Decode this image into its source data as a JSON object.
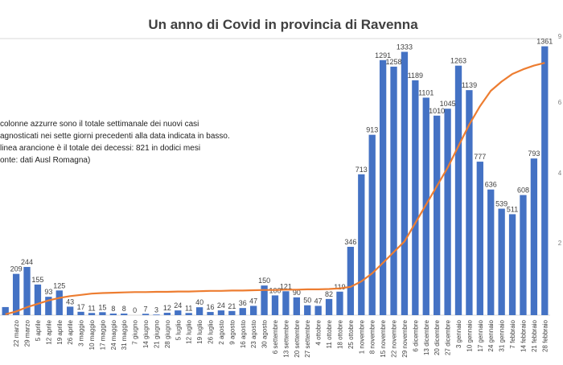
{
  "chart_data": {
    "type": "bar",
    "title": "Un anno di Covid in provincia di Ravenna",
    "annotation": [
      "colonne azzurre sono il totale settimanale dei nuovi casi",
      "agnosticati nei sette giorni precedenti alla data indicata in basso.",
      "linea arancione è il totale dei decessi: 821 in dodici mesi",
      "onte: dati Ausl Romagna)"
    ],
    "categories": [
      "",
      "22 marzo",
      "29 marzo",
      "5 aprile",
      "12 aprile",
      "19 aprile",
      "26 aprile",
      "3 maggio",
      "10 maggio",
      "17 maggio",
      "24 maggio",
      "31 maggio",
      "7 giugno",
      "14 giugno",
      "21 giugno",
      "28 giugno",
      "5 luglio",
      "12 luglio",
      "19 luglio",
      "26 luglio",
      "2 agosto",
      "9 agosto",
      "16 agosto",
      "23 agosto",
      "30 agosto",
      "6 settembre",
      "13 settembre",
      "20 settembre",
      "27 settembre",
      "4 ottobre",
      "11 ottobre",
      "18 ottobre",
      "25 ottobre",
      "1 novembre",
      "8 novembre",
      "15 novembre",
      "22 novembre",
      "29 novembre",
      "6 dicembre",
      "13 dicembre",
      "20 dicembre",
      "27 dicembre",
      "3 gennaio",
      "10 gennaio",
      "17 gennaio",
      "24 gennaio",
      "31 gennaio",
      "7 febbraio",
      "14 febbraio",
      "21 febbraio",
      "28 febbraio"
    ],
    "series": [
      {
        "type": "bar",
        "color": "#4472C4",
        "values": [
          41,
          209,
          244,
          155,
          93,
          125,
          43,
          17,
          11,
          15,
          8,
          8,
          0,
          7,
          3,
          12,
          24,
          11,
          40,
          16,
          24,
          21,
          36,
          47,
          150,
          100,
          121,
          90,
          50,
          47,
          82,
          119,
          346,
          713,
          913,
          1291,
          1258,
          1333,
          1189,
          1101,
          1010,
          1045,
          1263,
          1139,
          777,
          636,
          539,
          511,
          608,
          793,
          1361
        ],
        "labels": [
          "",
          "209",
          "244",
          "155",
          "93",
          "125",
          "43",
          "17",
          "11",
          "15",
          "8",
          "8",
          "0",
          "7",
          "3",
          "12",
          "24",
          "11",
          "40",
          "16",
          "24",
          "21",
          "36",
          "47",
          "150",
          "100",
          "121",
          "90",
          "50",
          "47",
          "82",
          "119",
          "346",
          "713",
          "913",
          "1291",
          "1258",
          "1333",
          "1189",
          "1101",
          "1010",
          "1045",
          "1263",
          "1139",
          "777",
          "636",
          "539",
          "511",
          "608",
          "793",
          "1361"
        ]
      },
      {
        "type": "line",
        "color": "#ED7D31",
        "axis": "right",
        "values": [
          3,
          12,
          26,
          37,
          48,
          56,
          62,
          66,
          70,
          72,
          73,
          74,
          75,
          75,
          76,
          76,
          77,
          77,
          78,
          79,
          79,
          80,
          80,
          81,
          82,
          82,
          83,
          83,
          84,
          84,
          85,
          87,
          92,
          110,
          136,
          170,
          205,
          240,
          300,
          360,
          420,
          480,
          550,
          620,
          680,
          730,
          760,
          785,
          800,
          812,
          821
        ]
      }
    ],
    "ylim": [
      0,
      1400
    ],
    "y2lim": [
      0,
      900
    ],
    "y_ticks_right": [
      "9",
      "6",
      "4",
      "2"
    ],
    "grid": false,
    "legend": "none"
  }
}
